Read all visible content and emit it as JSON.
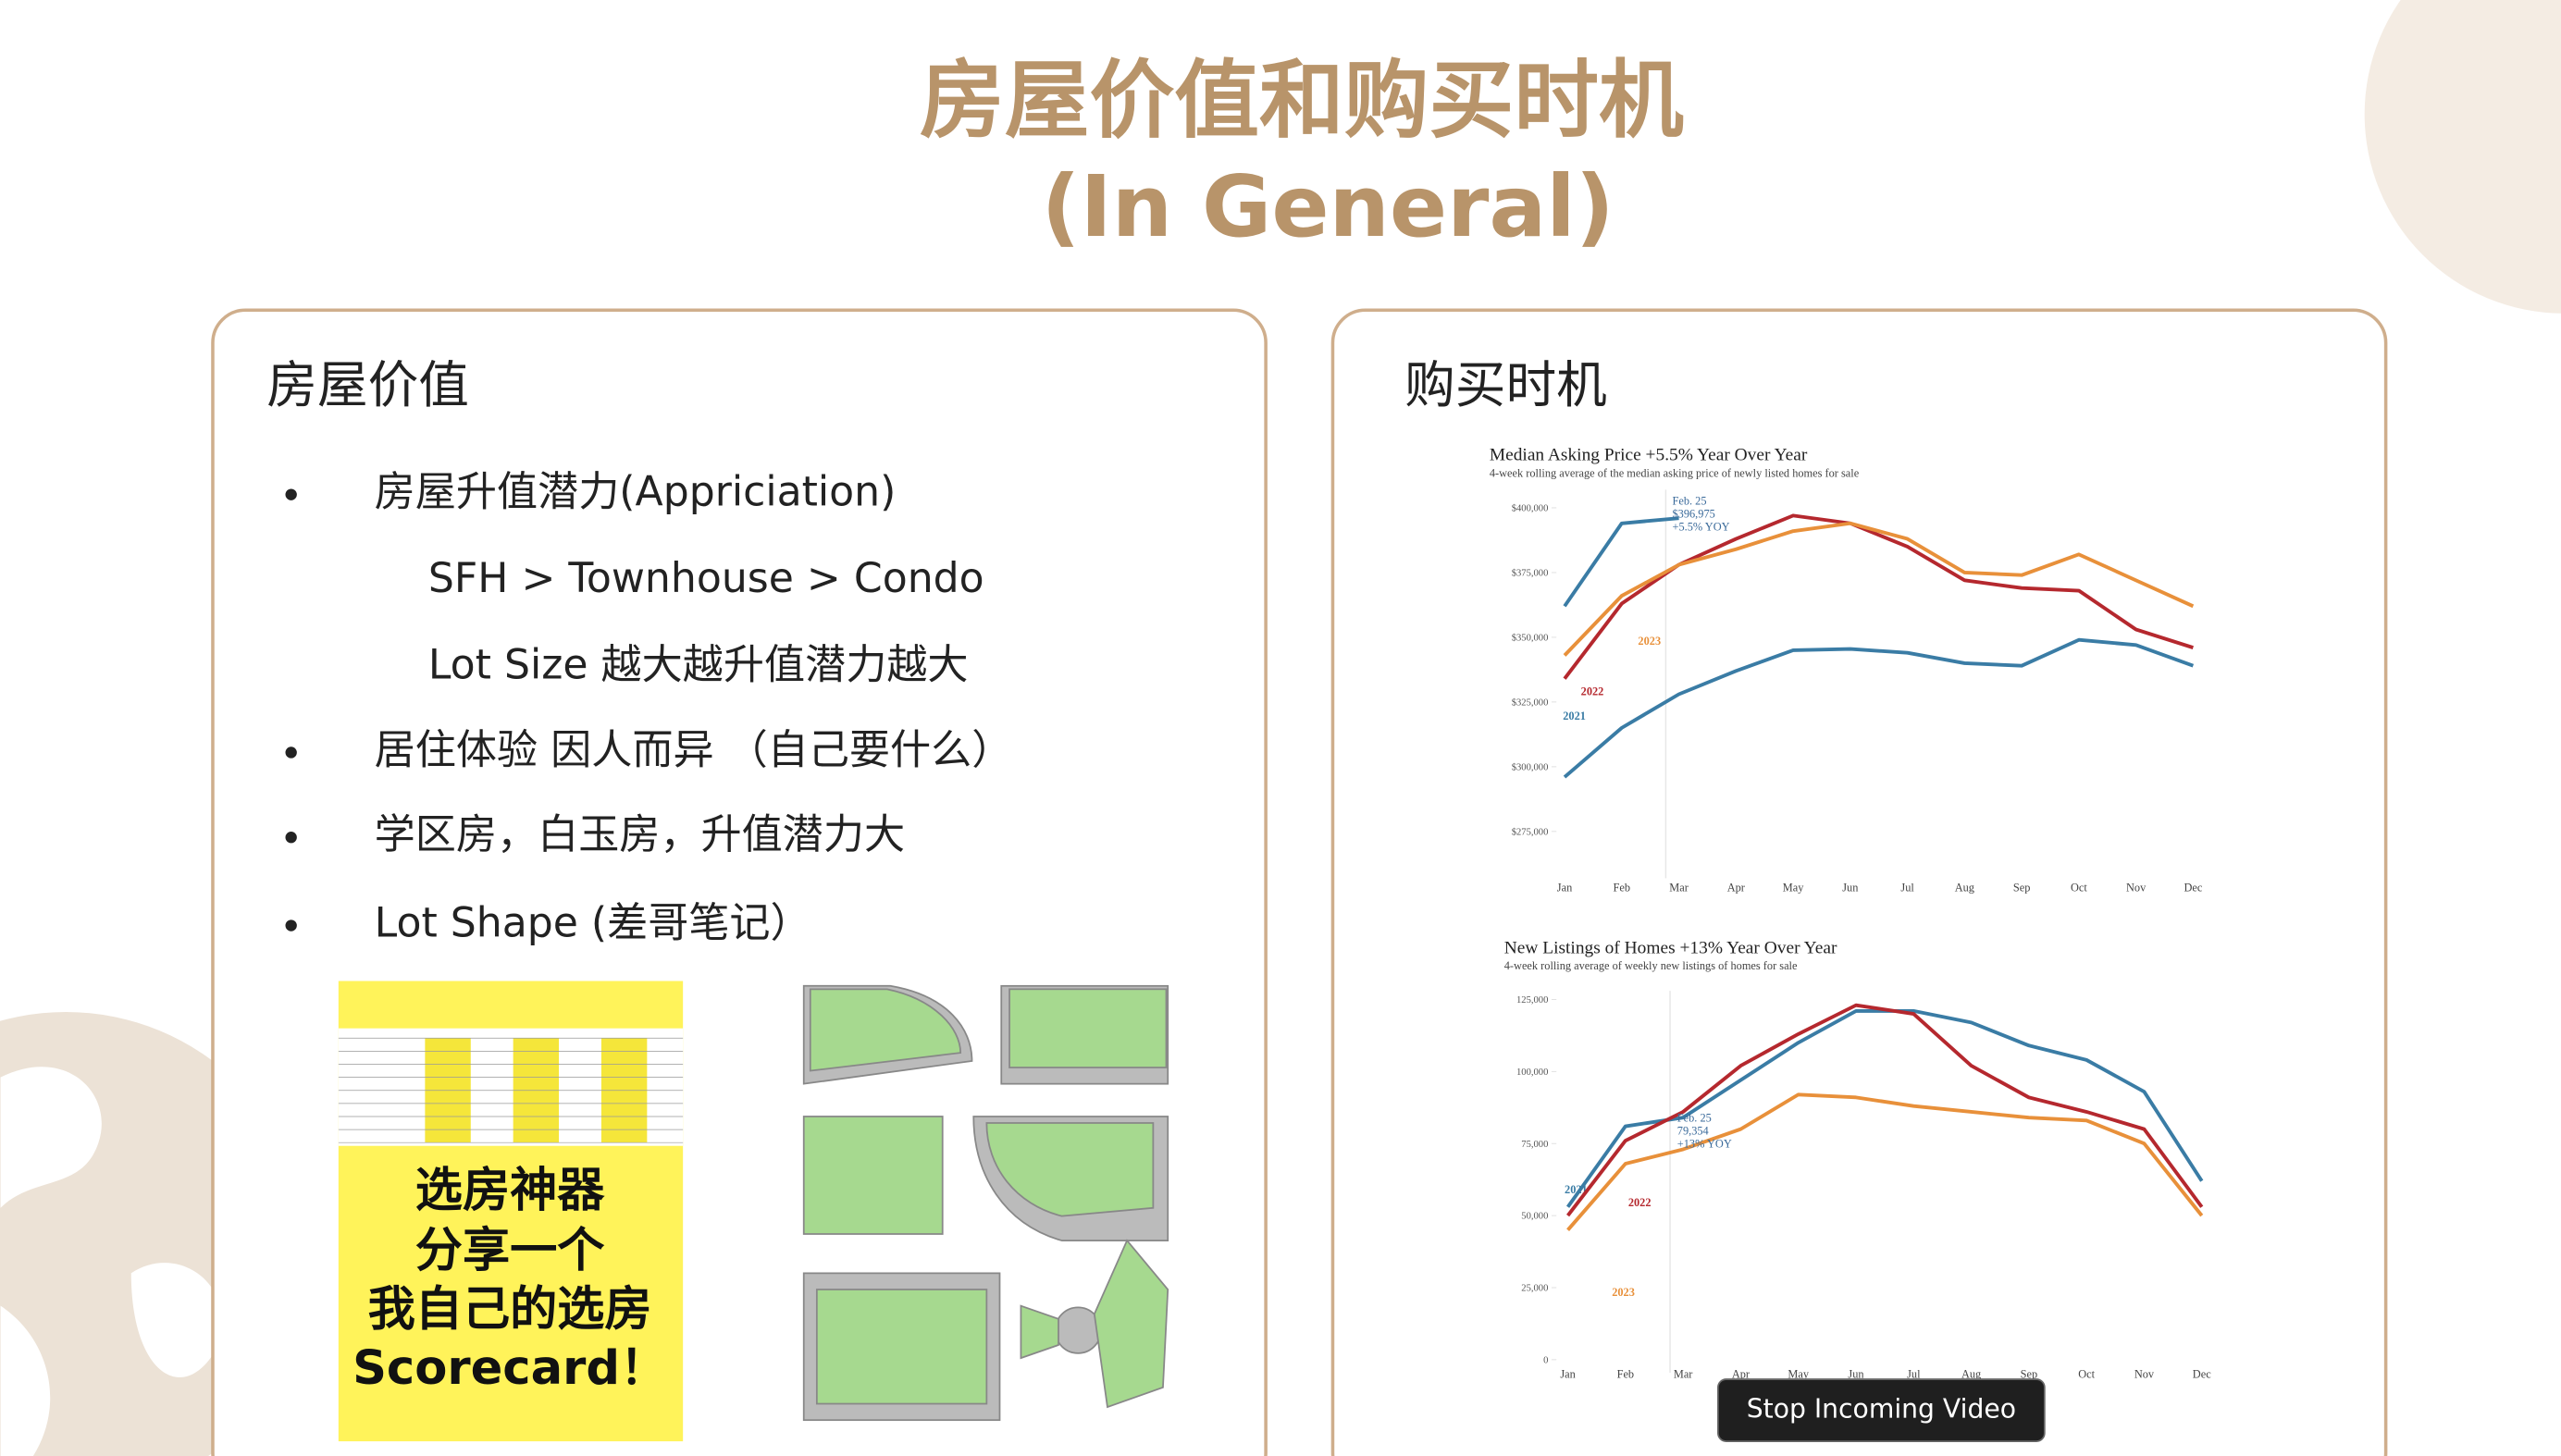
{
  "slide": {
    "title": "房屋价值和购买时机",
    "subtitle": "(In General)"
  },
  "left_panel": {
    "heading": "房屋价值",
    "items": [
      {
        "text": "房屋升值潜力(Appriciation)",
        "sub": [
          "SFH > Townhouse > Condo",
          "Lot Size 越大越升值潜力越大"
        ]
      },
      {
        "text": "居住体验 因人而异 （自己要什么）"
      },
      {
        "text": "学区房，白玉房，升值潜力大"
      },
      {
        "text": "Lot Shape (差哥笔记）"
      }
    ],
    "scorecard": [
      "选房神器",
      "分享一个",
      "我自己的选房",
      "Scorecard！"
    ]
  },
  "right_panel": {
    "heading": "购买时机"
  },
  "chart_data": [
    {
      "type": "line",
      "title": "Median Asking Price +5.5% Year Over Year",
      "subtitle": "4-week rolling average of the median asking price of newly listed homes for sale",
      "categories": [
        "Jan",
        "Feb",
        "Mar",
        "Apr",
        "May",
        "Jun",
        "Jul",
        "Aug",
        "Sep",
        "Oct",
        "Nov",
        "Dec"
      ],
      "series": [
        {
          "name": "2021",
          "color": "#3a7ca5",
          "values": [
            296000,
            315000,
            328000,
            337000,
            345000,
            345500,
            344000,
            340000,
            339000,
            349000,
            347000,
            339000
          ]
        },
        {
          "name": "2022",
          "color": "#b5282e",
          "values": [
            334000,
            363000,
            378000,
            388000,
            397000,
            394000,
            385000,
            372000,
            369000,
            368000,
            353000,
            346000
          ]
        },
        {
          "name": "2023",
          "color": "#e8903a",
          "values": [
            343000,
            366000,
            378000,
            384000,
            391000,
            394000,
            388000,
            375000,
            374000,
            382000,
            372000,
            362000
          ]
        },
        {
          "color": "#3a7ca5",
          "values": [
            362000,
            394000,
            396000,
            null,
            null,
            null,
            null,
            null,
            null,
            null,
            null,
            null
          ]
        }
      ],
      "annotations": [
        "Feb. 25",
        "$396,975",
        "+5.5% YOY"
      ],
      "ylim": [
        262000,
        407000
      ],
      "yticks": [
        {
          "value": 275000,
          "label": "$275,000"
        },
        {
          "value": 300000,
          "label": "$300,000"
        },
        {
          "value": 325000,
          "label": "$325,000"
        },
        {
          "value": 350000,
          "label": "$350,000"
        },
        {
          "value": 375000,
          "label": "$375,000"
        },
        {
          "value": 400000,
          "label": "$400,000"
        }
      ],
      "grid": false
    },
    {
      "type": "line",
      "title": "New Listings of Homes +13% Year Over Year",
      "subtitle": "4-week rolling average of weekly new listings of homes for sale",
      "categories": [
        "Jan",
        "Feb",
        "Mar",
        "Apr",
        "May",
        "Jun",
        "Jul",
        "Aug",
        "Sep",
        "Oct",
        "Nov",
        "Dec"
      ],
      "series": [
        {
          "name": "2021",
          "color": "#3a7ca5",
          "values": [
            53000,
            81000,
            84000,
            97000,
            110000,
            121000,
            121000,
            117000,
            109000,
            104000,
            93000,
            62000
          ]
        },
        {
          "name": "2022",
          "color": "#b5282e",
          "values": [
            50000,
            76000,
            86000,
            102000,
            113000,
            123000,
            120000,
            102000,
            91000,
            86000,
            80000,
            53000
          ]
        },
        {
          "name": "2023",
          "color": "#e8903a",
          "values": [
            45000,
            68000,
            73000,
            80000,
            92000,
            91000,
            88000,
            86000,
            84000,
            83000,
            75000,
            50000
          ]
        }
      ],
      "annotations": [
        "Feb. 25",
        "79,354",
        "+13% YOY"
      ],
      "ylim": [
        0,
        128000
      ],
      "yticks": [
        0,
        {
          "value": 25000,
          "label": "25,000"
        },
        {
          "value": 50000,
          "label": "50,000"
        },
        {
          "value": 75000,
          "label": "75,000"
        },
        {
          "value": 100000,
          "label": "100,000"
        },
        {
          "value": 125000,
          "label": "125,000"
        }
      ],
      "grid": false
    }
  ],
  "controls": {
    "stop_video": "Stop Incoming Video"
  }
}
